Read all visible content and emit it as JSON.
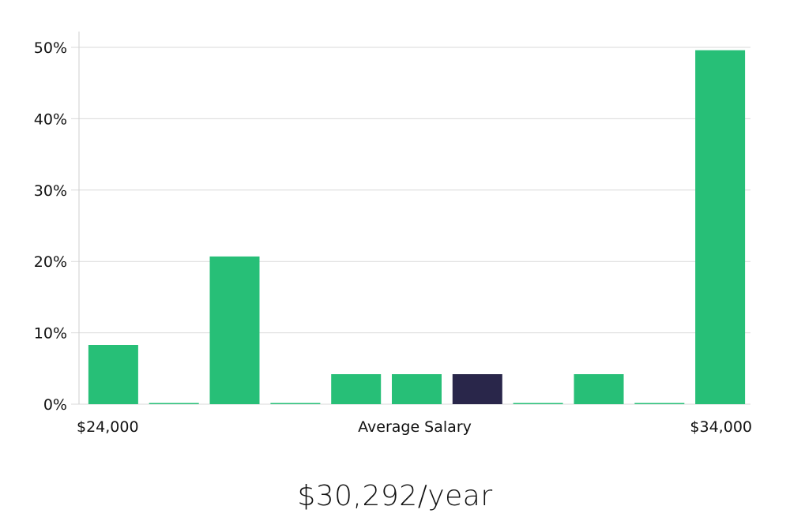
{
  "chart_data": {
    "type": "bar",
    "categories": [
      "1",
      "2",
      "3",
      "4",
      "5",
      "6",
      "7",
      "8",
      "9",
      "10",
      "11"
    ],
    "values": [
      8.3,
      0.0,
      20.7,
      0.0,
      4.2,
      4.2,
      4.2,
      0.0,
      4.2,
      0.0,
      49.6
    ],
    "highlight_index": 6,
    "ylim": [
      0,
      52
    ],
    "yticks": [
      0,
      10,
      20,
      30,
      40,
      50
    ],
    "ytick_labels": [
      "0%",
      "10%",
      "20%",
      "30%",
      "40%",
      "50%"
    ],
    "x_left_label": "$24,000",
    "x_center_label": "Average Salary",
    "x_right_label": "$34,000",
    "bar_color": "#27bf77",
    "highlight_color": "#29264a",
    "grid": true
  },
  "summary": {
    "salary_text": "$30,292/year"
  }
}
